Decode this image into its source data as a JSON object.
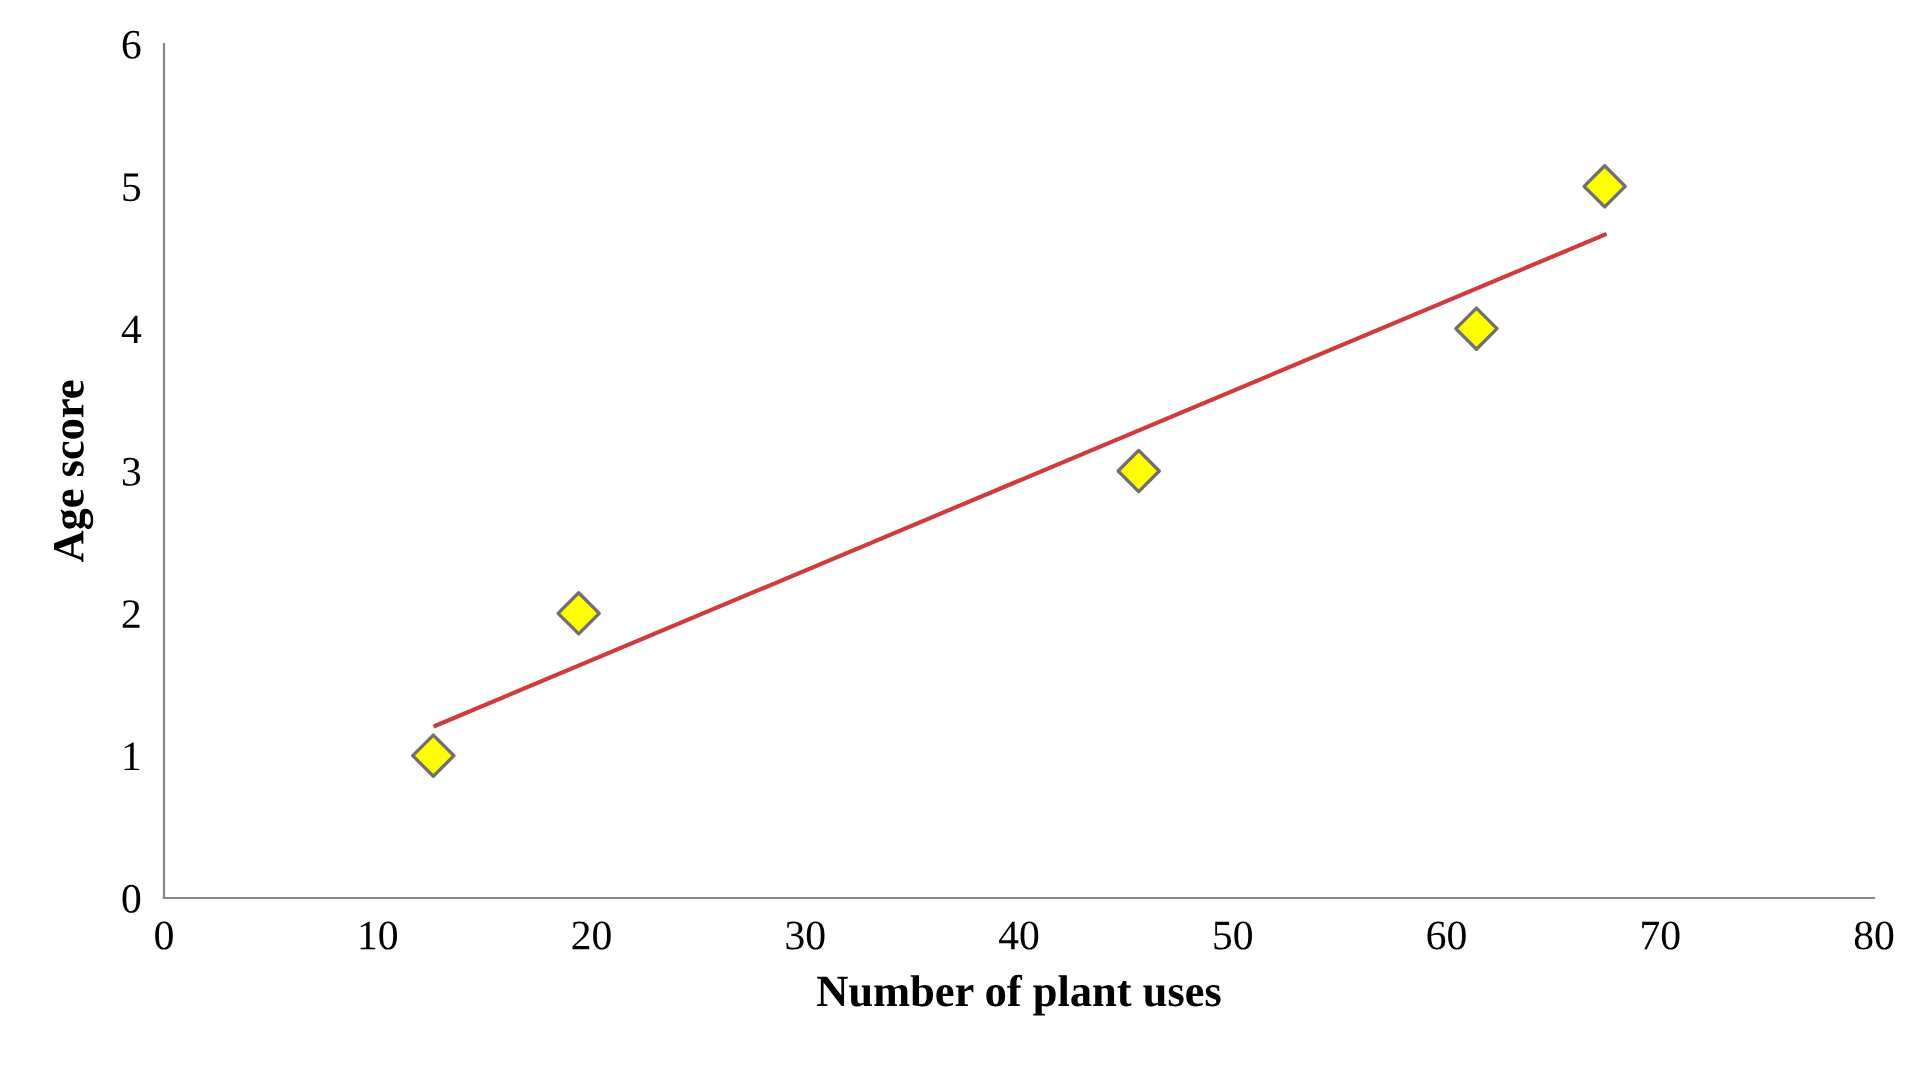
{
  "chart_data": {
    "type": "scatter",
    "xlabel": "Number of plant uses",
    "ylabel": "Age score",
    "xlim": [
      0,
      80
    ],
    "xticks": [
      0,
      10,
      20,
      30,
      40,
      50,
      60,
      70,
      80
    ],
    "ylim": [
      0,
      6
    ],
    "yticks": [
      0,
      1,
      2,
      3,
      4,
      5,
      6
    ],
    "grid": false,
    "marker": "diamond",
    "series": [
      {
        "color": "#ffff00",
        "x": [
          12.6,
          19.4,
          45.6,
          61.4,
          67.4
        ],
        "values": [
          1,
          2,
          3,
          4,
          5
        ]
      },
      {
        "type": "line",
        "color": "#d03c3c",
        "x": [
          12.7,
          67.4
        ],
        "values": [
          1.21,
          4.66
        ],
        "marker": "none",
        "line_style": "solid"
      }
    ]
  }
}
